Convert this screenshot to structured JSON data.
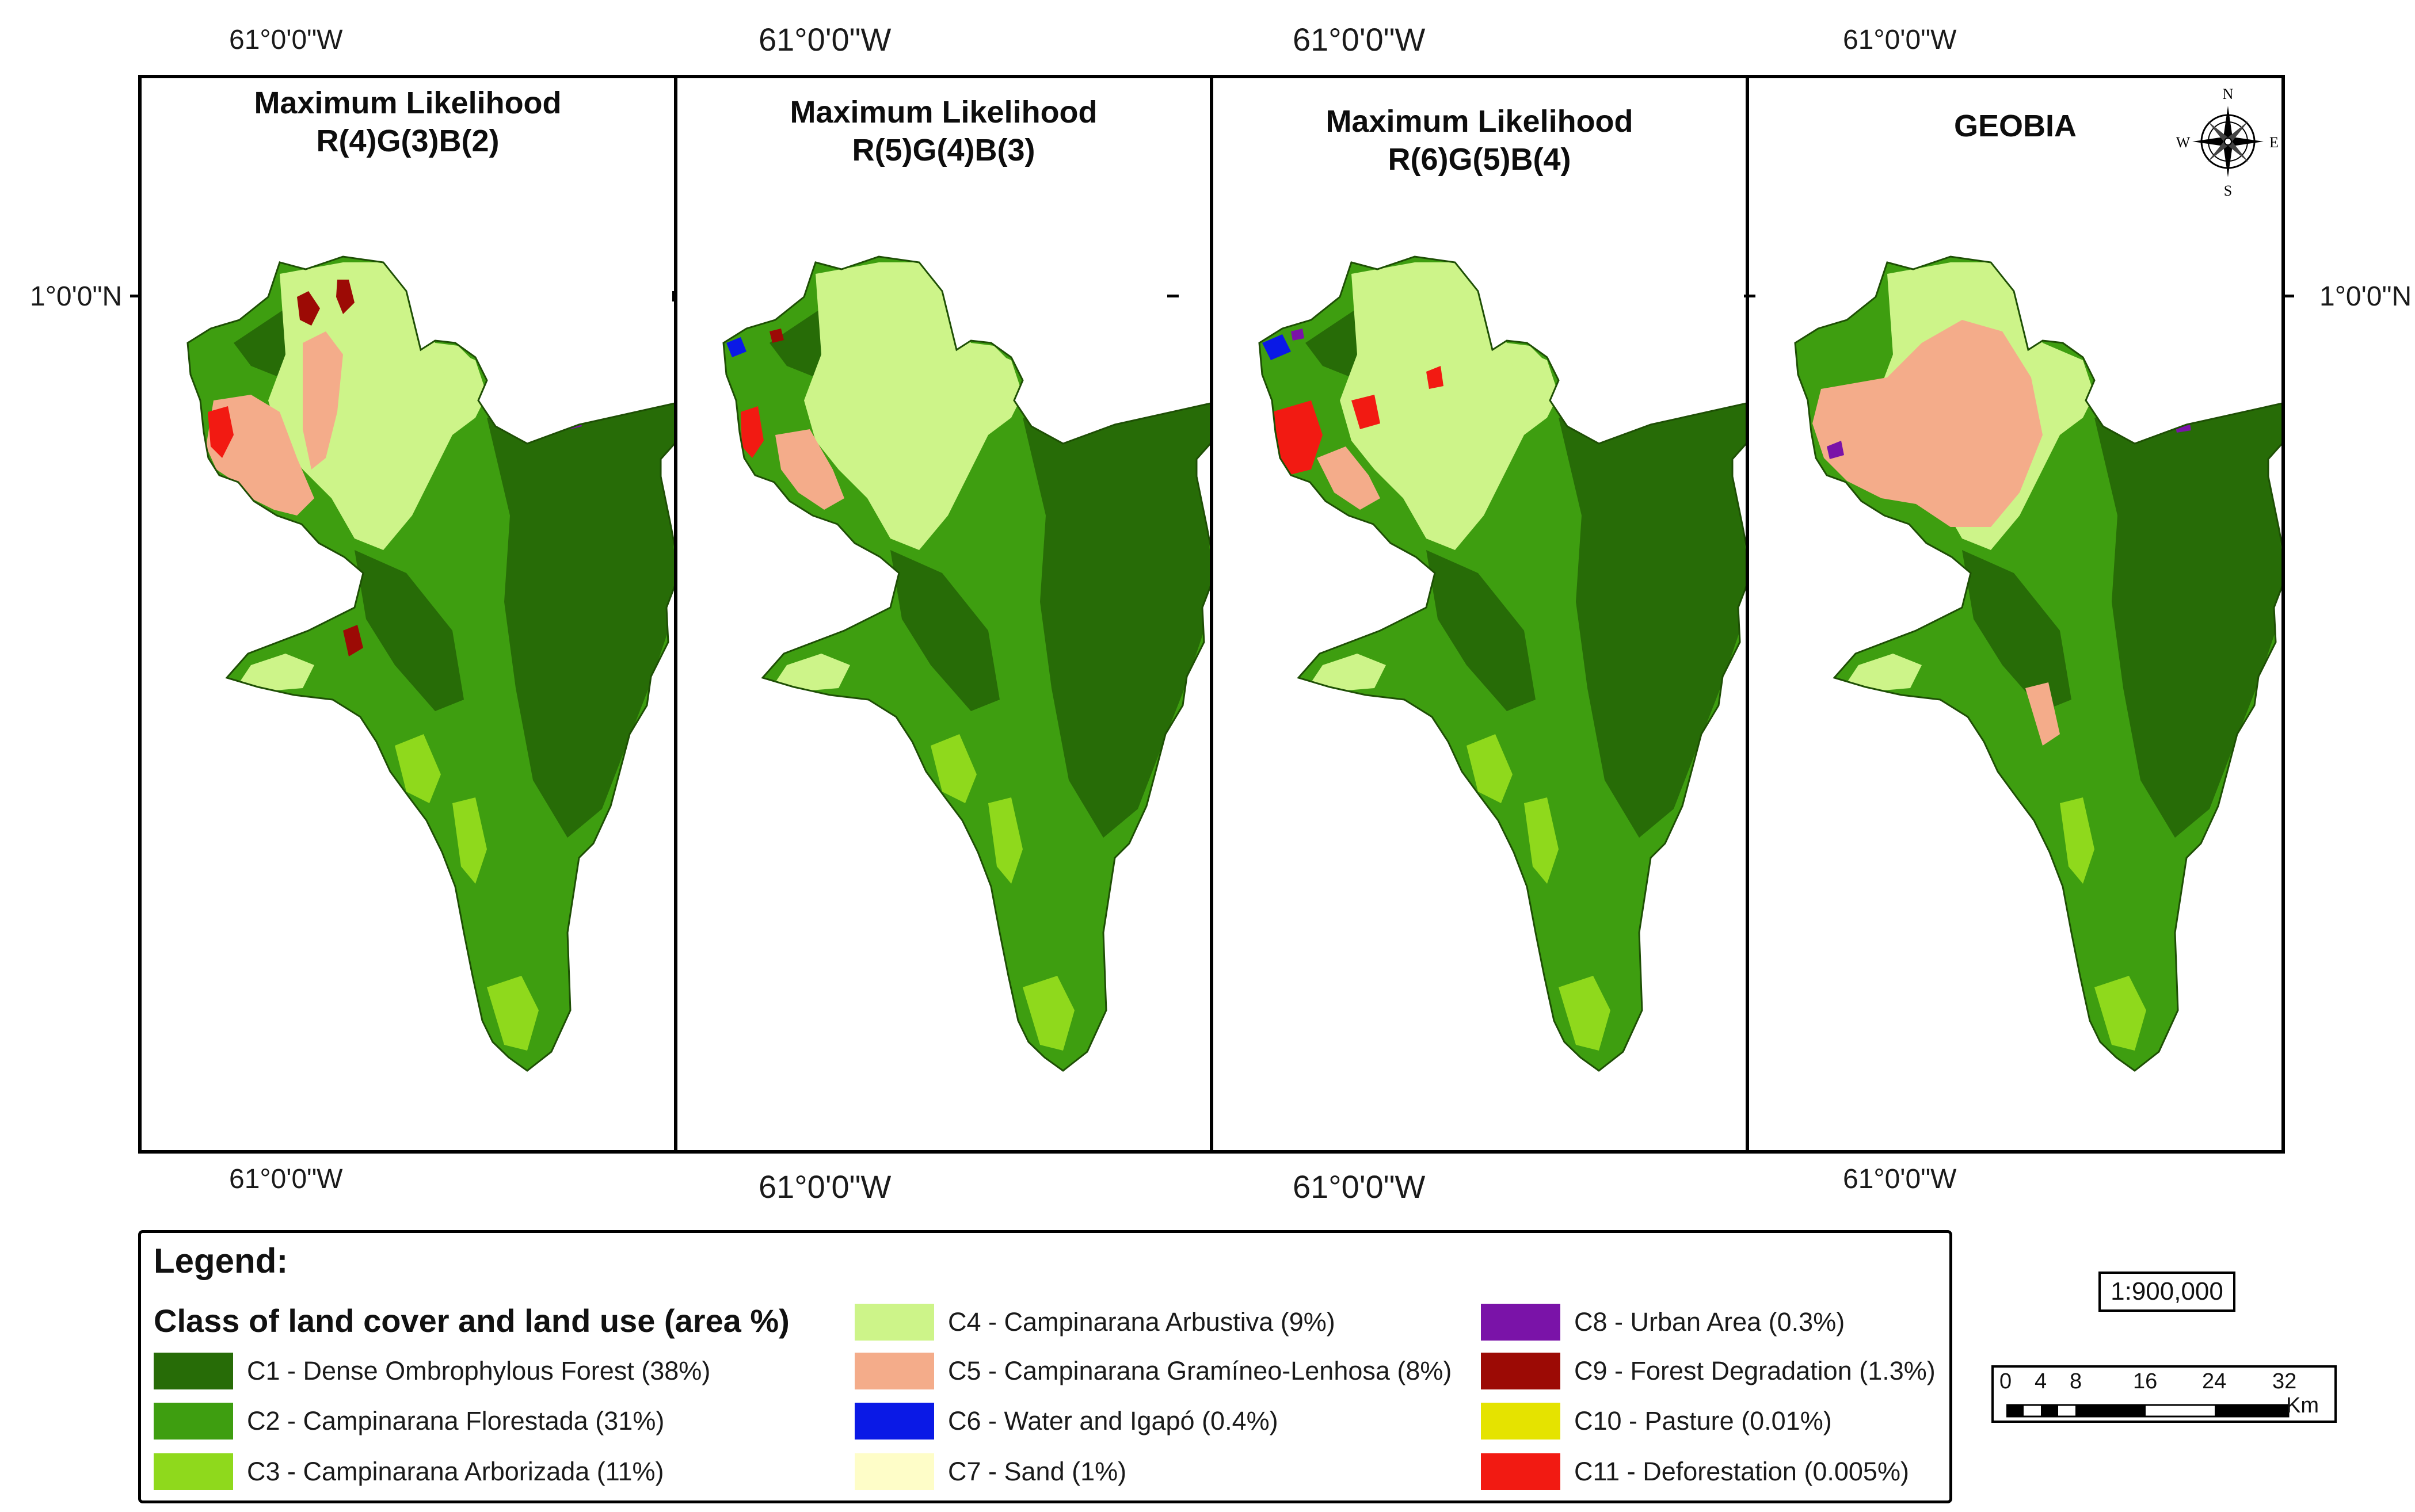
{
  "coordinates": {
    "longitude_label": "61°0'0\"W",
    "latitude_label": "1°0'0\"N"
  },
  "panels": [
    {
      "title_line1": "Maximum Likelihood",
      "title_line2": "R(4)G(3)B(2)"
    },
    {
      "title_line1": "Maximum Likelihood",
      "title_line2": "R(5)G(4)B(3)"
    },
    {
      "title_line1": "Maximum Likelihood",
      "title_line2": "R(6)G(5)B(4)"
    },
    {
      "title_line1": "GEOBIA",
      "title_line2": ""
    }
  ],
  "north_arrow": {
    "n": "N",
    "s": "S",
    "e": "E",
    "w": "W"
  },
  "legend": {
    "heading": "Legend:",
    "subheading": "Class of land cover and land use (area %)",
    "items": [
      {
        "label": "C1 - Dense Ombrophylous Forest (38%)",
        "color": "#276c07"
      },
      {
        "label": "C2 - Campinarana Florestada (31%)",
        "color": "#3e9e10"
      },
      {
        "label": "C3 - Campinarana Arborizada (11%)",
        "color": "#8fd91c"
      },
      {
        "label": "C4 - Campinarana Arbustiva (9%)",
        "color": "#cdf489"
      },
      {
        "label": "C5 - Campinarana Gramíneo-Lenhosa (8%)",
        "color": "#f4ac8a"
      },
      {
        "label": "C6 - Water and Igapó (0.4%)",
        "color": "#0a19e6"
      },
      {
        "label": "C7 - Sand (1%)",
        "color": "#fefdc8"
      },
      {
        "label": "C8 - Urban Area (0.3%)",
        "color": "#7a13a8"
      },
      {
        "label": "C9 - Forest Degradation (1.3%)",
        "color": "#9c0a05"
      },
      {
        "label": "C10 - Pasture (0.01%)",
        "color": "#e5e300"
      },
      {
        "label": "C11 - Deforestation (0.005%)",
        "color": "#f21a12"
      }
    ]
  },
  "scale": {
    "ratio": "1:900,000",
    "ticks": [
      "0",
      "4",
      "8",
      "16",
      "24",
      "32"
    ],
    "unit": "Km"
  }
}
